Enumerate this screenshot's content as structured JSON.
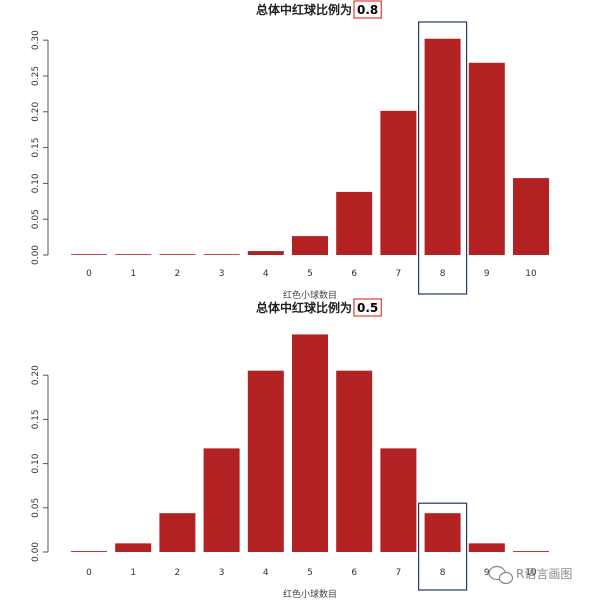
{
  "chart_data": [
    {
      "type": "bar",
      "title_prefix": "总体中红球比例为",
      "title_value": "0.8",
      "xlabel": "红色小球数目",
      "categories": [
        "0",
        "1",
        "2",
        "3",
        "4",
        "5",
        "6",
        "7",
        "8",
        "9",
        "10"
      ],
      "values": [
        1e-07,
        4e-06,
        7e-05,
        0.0008,
        0.0055,
        0.0264,
        0.0881,
        0.2013,
        0.302,
        0.2684,
        0.1074
      ],
      "ylim": [
        0,
        0.31
      ],
      "yticks": [
        "0.00",
        "0.05",
        "0.10",
        "0.15",
        "0.20",
        "0.25",
        "0.30"
      ],
      "bar_color": "#B22222",
      "highlight_category": "8",
      "highlight_color": "#1F3864",
      "title_box_color": "#E53935"
    },
    {
      "type": "bar",
      "title_prefix": "总体中红球比例为",
      "title_value": "0.5",
      "xlabel": "红色小球数目",
      "categories": [
        "0",
        "1",
        "2",
        "3",
        "4",
        "5",
        "6",
        "7",
        "8",
        "9",
        "10"
      ],
      "values": [
        0.001,
        0.0098,
        0.0439,
        0.1172,
        0.2051,
        0.2461,
        0.2051,
        0.1172,
        0.0439,
        0.0098,
        0.001
      ],
      "ylim": [
        0,
        0.25
      ],
      "yticks": [
        "0.00",
        "0.05",
        "0.10",
        "0.15",
        "0.20"
      ],
      "bar_color": "#B22222",
      "highlight_category": "8",
      "highlight_color": "#1F3864",
      "title_box_color": "#E53935"
    }
  ],
  "watermark": {
    "text": "R语言画图",
    "icon": "wechat-icon"
  }
}
